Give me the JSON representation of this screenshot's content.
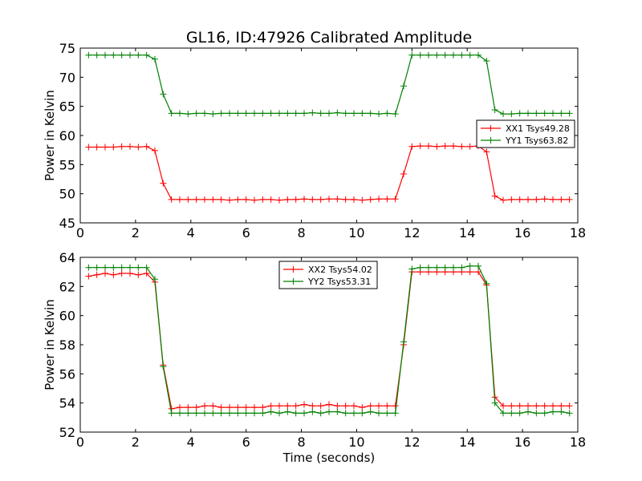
{
  "figure": {
    "title": "GL16, ID:47926 Calibrated Amplitude"
  },
  "colors": {
    "xx": "#ff0000",
    "yy": "#008000",
    "axes": "#000000",
    "background": "#ffffff"
  },
  "chart_data": [
    {
      "type": "line",
      "title": "GL16, ID:47926 Calibrated Amplitude",
      "xlabel": "",
      "ylabel": "Power in Kelvin",
      "xlim": [
        0,
        18
      ],
      "ylim": [
        45,
        75
      ],
      "xticks": [
        0,
        2,
        4,
        6,
        8,
        10,
        12,
        14,
        16,
        18
      ],
      "yticks": [
        45,
        50,
        55,
        60,
        65,
        70,
        75
      ],
      "grid": false,
      "legend_position": "center-right",
      "marker": "+",
      "x": [
        0.3,
        0.6,
        0.9,
        1.2,
        1.5,
        1.8,
        2.1,
        2.4,
        2.7,
        3.0,
        3.3,
        3.6,
        3.9,
        4.2,
        4.5,
        4.8,
        5.1,
        5.4,
        5.7,
        6.0,
        6.3,
        6.6,
        6.9,
        7.2,
        7.5,
        7.8,
        8.1,
        8.4,
        8.7,
        9.0,
        9.3,
        9.6,
        9.9,
        10.2,
        10.5,
        10.8,
        11.1,
        11.4,
        11.7,
        12.0,
        12.3,
        12.6,
        12.9,
        13.2,
        13.5,
        13.8,
        14.1,
        14.4,
        14.7,
        15.0,
        15.3,
        15.6,
        15.9,
        16.2,
        16.5,
        16.8,
        17.1,
        17.4,
        17.7
      ],
      "series": [
        {
          "name": "XX1 Tsys49.28",
          "color": "#ff0000",
          "values": [
            58.0,
            58.0,
            58.0,
            58.0,
            58.1,
            58.1,
            58.0,
            58.1,
            57.4,
            51.8,
            49.0,
            49.0,
            49.0,
            49.0,
            49.0,
            49.0,
            49.0,
            48.9,
            49.0,
            49.0,
            48.9,
            49.0,
            49.0,
            48.9,
            49.0,
            49.0,
            49.1,
            49.0,
            49.0,
            49.1,
            49.1,
            49.0,
            49.0,
            48.9,
            49.0,
            49.1,
            49.1,
            49.1,
            53.4,
            58.1,
            58.2,
            58.2,
            58.1,
            58.2,
            58.2,
            58.1,
            58.1,
            58.2,
            57.2,
            49.6,
            48.9,
            49.0,
            49.0,
            49.0,
            49.0,
            49.1,
            49.0,
            49.0,
            49.0
          ]
        },
        {
          "name": "YY1 Tsys63.82",
          "color": "#008000",
          "values": [
            73.8,
            73.8,
            73.8,
            73.8,
            73.8,
            73.8,
            73.8,
            73.8,
            73.1,
            67.1,
            63.8,
            63.8,
            63.7,
            63.8,
            63.8,
            63.7,
            63.8,
            63.8,
            63.8,
            63.8,
            63.8,
            63.8,
            63.8,
            63.8,
            63.8,
            63.8,
            63.8,
            63.9,
            63.8,
            63.8,
            63.9,
            63.8,
            63.8,
            63.8,
            63.8,
            63.7,
            63.8,
            63.7,
            68.5,
            73.8,
            73.8,
            73.8,
            73.8,
            73.8,
            73.8,
            73.8,
            73.8,
            73.8,
            72.8,
            64.4,
            63.7,
            63.7,
            63.8,
            63.8,
            63.8,
            63.8,
            63.8,
            63.8,
            63.8
          ]
        }
      ]
    },
    {
      "type": "line",
      "title": "",
      "xlabel": "Time (seconds)",
      "ylabel": "Power in Kelvin",
      "xlim": [
        0,
        18
      ],
      "ylim": [
        52,
        64
      ],
      "xticks": [
        0,
        2,
        4,
        6,
        8,
        10,
        12,
        14,
        16,
        18
      ],
      "yticks": [
        52,
        54,
        56,
        58,
        60,
        62,
        64
      ],
      "grid": false,
      "legend_position": "top-center",
      "marker": "+",
      "x": [
        0.3,
        0.6,
        0.9,
        1.2,
        1.5,
        1.8,
        2.1,
        2.4,
        2.7,
        3.0,
        3.3,
        3.6,
        3.9,
        4.2,
        4.5,
        4.8,
        5.1,
        5.4,
        5.7,
        6.0,
        6.3,
        6.6,
        6.9,
        7.2,
        7.5,
        7.8,
        8.1,
        8.4,
        8.7,
        9.0,
        9.3,
        9.6,
        9.9,
        10.2,
        10.5,
        10.8,
        11.1,
        11.4,
        11.7,
        12.0,
        12.3,
        12.6,
        12.9,
        13.2,
        13.5,
        13.8,
        14.1,
        14.4,
        14.7,
        15.0,
        15.3,
        15.6,
        15.9,
        16.2,
        16.5,
        16.8,
        17.1,
        17.4,
        17.7
      ],
      "series": [
        {
          "name": "XX2 Tsys54.02",
          "color": "#ff0000",
          "values": [
            62.7,
            62.8,
            62.9,
            62.8,
            62.9,
            62.9,
            62.8,
            62.9,
            62.3,
            56.6,
            53.6,
            53.7,
            53.7,
            53.7,
            53.8,
            53.8,
            53.7,
            53.7,
            53.7,
            53.7,
            53.7,
            53.7,
            53.8,
            53.8,
            53.8,
            53.8,
            53.9,
            53.8,
            53.8,
            53.9,
            53.8,
            53.8,
            53.8,
            53.7,
            53.8,
            53.8,
            53.8,
            53.8,
            58.0,
            63.0,
            63.0,
            63.0,
            63.0,
            63.0,
            63.0,
            63.0,
            63.0,
            63.0,
            62.1,
            54.4,
            53.8,
            53.8,
            53.8,
            53.8,
            53.8,
            53.8,
            53.8,
            53.8,
            53.8
          ]
        },
        {
          "name": "YY2 Tsys53.31",
          "color": "#008000",
          "values": [
            63.3,
            63.3,
            63.3,
            63.3,
            63.3,
            63.3,
            63.3,
            63.3,
            62.5,
            56.5,
            53.3,
            53.3,
            53.3,
            53.3,
            53.3,
            53.3,
            53.3,
            53.3,
            53.3,
            53.3,
            53.3,
            53.3,
            53.4,
            53.3,
            53.4,
            53.3,
            53.3,
            53.4,
            53.3,
            53.4,
            53.4,
            53.3,
            53.3,
            53.3,
            53.4,
            53.3,
            53.3,
            53.3,
            58.2,
            63.2,
            63.3,
            63.3,
            63.3,
            63.3,
            63.3,
            63.3,
            63.4,
            63.4,
            62.2,
            54.0,
            53.3,
            53.3,
            53.3,
            53.4,
            53.3,
            53.3,
            53.4,
            53.4,
            53.3
          ]
        }
      ]
    }
  ]
}
